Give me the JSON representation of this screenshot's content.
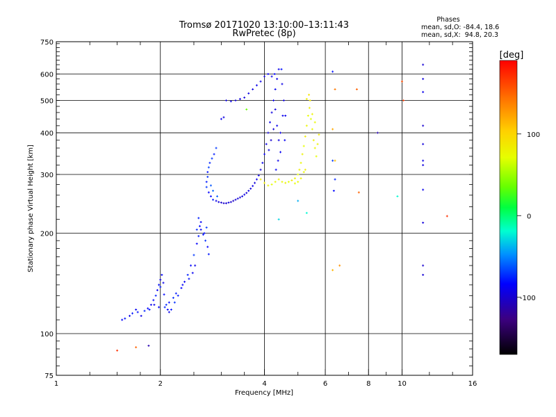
{
  "header": {
    "title": "Tromsø 20171020 13:10:00–13:11:43",
    "subtitle": "RwPretec (8p)"
  },
  "phases": {
    "label": "Phases",
    "line_o": "mean, sd,O: -84.4, 18.6",
    "line_x": "mean, sd,X:  94.8, 20.3"
  },
  "colorbar": {
    "unit": "[deg]",
    "ticks": [
      {
        "value": 100,
        "label": "100"
      },
      {
        "value": 0,
        "label": "0"
      },
      {
        "value": -100,
        "label": "-100"
      }
    ]
  },
  "chart_data": {
    "type": "scatter",
    "xlabel": "Frequency [MHz]",
    "ylabel": "Stationary phase Virtual Height [km]",
    "x_scale": "log2",
    "y_scale": "log",
    "xlim": [
      1,
      16
    ],
    "ylim": [
      75,
      750
    ],
    "grid": true,
    "x_ticks": [
      1,
      2,
      4,
      6,
      8,
      10,
      16
    ],
    "x_tick_labels": [
      "1",
      "2",
      "4",
      "6",
      "8",
      "10",
      "16"
    ],
    "y_ticks": [
      75,
      100,
      200,
      300,
      400,
      500,
      600,
      750
    ],
    "y_tick_labels": [
      "75",
      "100",
      "200",
      "300",
      "400",
      "500",
      "600",
      "750"
    ],
    "phase_range": [
      -170,
      190
    ],
    "series": [
      {
        "points": [
          [
            1.55,
            110,
            -85
          ],
          [
            1.58,
            111,
            -80
          ],
          [
            1.63,
            113,
            -90
          ],
          [
            1.66,
            115,
            -78
          ],
          [
            1.7,
            118,
            -88
          ],
          [
            1.72,
            116,
            -80
          ],
          [
            1.76,
            113,
            -92
          ],
          [
            1.8,
            117,
            -75
          ],
          [
            1.84,
            119,
            -83
          ],
          [
            1.88,
            122,
            -90
          ],
          [
            1.91,
            126,
            -82
          ],
          [
            1.94,
            130,
            -76
          ],
          [
            1.96,
            135,
            -88
          ],
          [
            1.98,
            140,
            -80
          ],
          [
            2.0,
            145,
            -92
          ],
          [
            2.0,
            138,
            -78
          ],
          [
            2.02,
            150,
            -85
          ],
          [
            2.04,
            142,
            -90
          ],
          [
            2.05,
            131,
            -82
          ],
          [
            2.08,
            122,
            -74
          ],
          [
            2.1,
            118,
            -86
          ],
          [
            2.12,
            116,
            -90
          ],
          [
            2.15,
            118,
            -80
          ],
          [
            2.2,
            124,
            -72
          ],
          [
            2.25,
            130,
            -78
          ],
          [
            2.3,
            137,
            -84
          ],
          [
            2.35,
            143,
            -88
          ],
          [
            2.4,
            150,
            -76
          ],
          [
            2.45,
            160,
            -82
          ],
          [
            2.5,
            172,
            -70
          ],
          [
            2.55,
            186,
            -85
          ],
          [
            2.58,
            196,
            -78
          ],
          [
            2.62,
            205,
            -88
          ],
          [
            2.66,
            198,
            -80
          ],
          [
            2.7,
            190,
            -72
          ],
          [
            2.74,
            182,
            -84
          ],
          [
            2.76,
            173,
            -78
          ],
          [
            2.6,
            210,
            -82
          ],
          [
            2.58,
            222,
            -76
          ],
          [
            2.62,
            216,
            -86
          ],
          [
            2.55,
            205,
            -74
          ],
          [
            2.68,
            200,
            -80
          ],
          [
            2.72,
            208,
            -70
          ],
          [
            2.52,
            160,
            -92
          ],
          [
            2.48,
            152,
            -88
          ],
          [
            2.42,
            146,
            -80
          ],
          [
            2.32,
            140,
            -86
          ],
          [
            2.22,
            132,
            -78
          ],
          [
            2.18,
            128,
            -74
          ],
          [
            2.12,
            124,
            -82
          ],
          [
            2.06,
            120,
            -76
          ],
          [
            1.98,
            120,
            -84
          ],
          [
            1.92,
            122,
            -90
          ],
          [
            1.86,
            118,
            -80
          ]
        ]
      },
      {
        "points": [
          [
            2.72,
            275,
            -70
          ],
          [
            2.72,
            285,
            -78
          ],
          [
            2.74,
            295,
            -72
          ],
          [
            2.74,
            305,
            -80
          ],
          [
            2.76,
            315,
            -68
          ],
          [
            2.78,
            325,
            -75
          ],
          [
            2.82,
            335,
            -72
          ],
          [
            2.86,
            345,
            -78
          ],
          [
            2.9,
            360,
            -70
          ],
          [
            2.76,
            265,
            -84
          ],
          [
            2.8,
            258,
            -82
          ],
          [
            2.84,
            252,
            -76
          ],
          [
            2.9,
            250,
            -92
          ],
          [
            2.95,
            248,
            -96
          ],
          [
            3.0,
            247,
            -100
          ],
          [
            3.05,
            246,
            -102
          ],
          [
            3.1,
            246,
            -98
          ],
          [
            3.15,
            247,
            -95
          ],
          [
            3.2,
            248,
            -100
          ],
          [
            3.25,
            250,
            -104
          ],
          [
            3.3,
            252,
            -98
          ],
          [
            3.35,
            254,
            -96
          ],
          [
            3.4,
            256,
            -100
          ],
          [
            3.45,
            258,
            -95
          ],
          [
            3.5,
            261,
            -92
          ],
          [
            3.55,
            264,
            -98
          ],
          [
            3.6,
            268,
            -94
          ],
          [
            3.65,
            272,
            -96
          ],
          [
            3.7,
            277,
            -92
          ],
          [
            3.75,
            283,
            -96
          ],
          [
            3.8,
            290,
            -90
          ],
          [
            3.85,
            298,
            -92
          ],
          [
            3.9,
            310,
            -94
          ],
          [
            3.95,
            325,
            -90
          ],
          [
            4.0,
            345,
            -88
          ],
          [
            4.05,
            370,
            -92
          ],
          [
            4.1,
            400,
            -96
          ],
          [
            4.15,
            430,
            -90
          ],
          [
            4.2,
            460,
            -94
          ],
          [
            4.25,
            500,
            -92
          ],
          [
            4.3,
            540,
            -88
          ],
          [
            4.35,
            580,
            -92
          ],
          [
            4.4,
            620,
            -90
          ],
          [
            4.3,
            470,
            -96
          ],
          [
            4.35,
            420,
            -90
          ],
          [
            4.4,
            380,
            -94
          ],
          [
            4.45,
            350,
            -88
          ],
          [
            4.38,
            330,
            -92
          ],
          [
            4.32,
            310,
            -86
          ],
          [
            4.28,
            600,
            -84
          ],
          [
            4.2,
            590,
            -90
          ],
          [
            4.1,
            600,
            -86
          ],
          [
            4.48,
            620,
            -80
          ],
          [
            4.5,
            560,
            -92
          ],
          [
            4.55,
            500,
            -94
          ],
          [
            4.52,
            450,
            -90
          ],
          [
            4.45,
            400,
            -92
          ],
          [
            4.58,
            380,
            -88
          ],
          [
            4.6,
            450,
            -90
          ],
          [
            4.25,
            410,
            -98
          ],
          [
            4.18,
            380,
            -100
          ],
          [
            4.12,
            355,
            -92
          ],
          [
            3.1,
            500,
            -96
          ],
          [
            3.2,
            497,
            -92
          ],
          [
            3.3,
            500,
            -98
          ],
          [
            3.4,
            505,
            -94
          ],
          [
            3.5,
            510,
            -96
          ],
          [
            3.6,
            525,
            -92
          ],
          [
            3.7,
            540,
            -94
          ],
          [
            3.8,
            555,
            -90
          ],
          [
            3.9,
            570,
            -92
          ],
          [
            4.0,
            590,
            -96
          ],
          [
            3.0,
            440,
            -90
          ],
          [
            3.05,
            445,
            -94
          ],
          [
            2.8,
            278,
            -62
          ],
          [
            2.84,
            268,
            -58
          ],
          [
            2.92,
            258,
            -60
          ]
        ]
      },
      {
        "points": [
          [
            4.5,
            285,
            75
          ],
          [
            4.6,
            283,
            80
          ],
          [
            4.7,
            285,
            70
          ],
          [
            4.8,
            288,
            85
          ],
          [
            4.9,
            292,
            78
          ],
          [
            5.0,
            300,
            74
          ],
          [
            5.05,
            310,
            82
          ],
          [
            5.1,
            325,
            76
          ],
          [
            5.15,
            345,
            80
          ],
          [
            5.2,
            365,
            72
          ],
          [
            5.25,
            390,
            85
          ],
          [
            5.3,
            420,
            78
          ],
          [
            5.35,
            450,
            74
          ],
          [
            5.4,
            475,
            82
          ],
          [
            5.42,
            500,
            88
          ],
          [
            5.38,
            520,
            90
          ],
          [
            5.3,
            505,
            84
          ],
          [
            5.45,
            440,
            70
          ],
          [
            5.5,
            410,
            76
          ],
          [
            5.55,
            380,
            82
          ],
          [
            5.6,
            360,
            78
          ],
          [
            5.65,
            340,
            72
          ],
          [
            5.7,
            370,
            80
          ],
          [
            5.75,
            395,
            86
          ],
          [
            5.6,
            430,
            74
          ],
          [
            5.5,
            455,
            78
          ],
          [
            4.4,
            290,
            82
          ],
          [
            4.3,
            285,
            76
          ],
          [
            4.2,
            280,
            70
          ],
          [
            4.1,
            278,
            78
          ],
          [
            4.0,
            283,
            84
          ],
          [
            3.9,
            290,
            88
          ],
          [
            5.0,
            285,
            74
          ],
          [
            5.1,
            292,
            80
          ],
          [
            5.2,
            305,
            76
          ],
          [
            5.25,
            310,
            84
          ],
          [
            4.9,
            282,
            72
          ]
        ]
      },
      {
        "points": [
          [
            6.3,
            610,
            -80
          ],
          [
            6.3,
            330,
            -70
          ],
          [
            6.4,
            290,
            -75
          ],
          [
            6.35,
            268,
            -82
          ],
          [
            8.5,
            400,
            -110
          ],
          [
            9.7,
            258,
            -20
          ],
          [
            5.3,
            230,
            -20
          ],
          [
            4.4,
            220,
            -30
          ],
          [
            5.0,
            250,
            -40
          ],
          [
            11.5,
            640,
            -98
          ],
          [
            11.5,
            580,
            -95
          ],
          [
            11.5,
            530,
            -90
          ],
          [
            11.5,
            420,
            -100
          ],
          [
            11.5,
            370,
            -96
          ],
          [
            11.5,
            330,
            -92
          ],
          [
            11.5,
            320,
            -95
          ],
          [
            11.5,
            270,
            -90
          ],
          [
            11.5,
            215,
            -96
          ],
          [
            11.5,
            160,
            -100
          ],
          [
            11.5,
            150,
            -98
          ],
          [
            3.55,
            470,
            35
          ],
          [
            6.4,
            540,
            140
          ],
          [
            7.4,
            540,
            150
          ],
          [
            6.3,
            410,
            120
          ],
          [
            6.4,
            330,
            110
          ],
          [
            6.3,
            155,
            115
          ],
          [
            6.6,
            160,
            130
          ],
          [
            7.5,
            265,
            150
          ],
          [
            10.0,
            570,
            160
          ],
          [
            10.1,
            500,
            165
          ],
          [
            13.5,
            225,
            170
          ],
          [
            1.5,
            89,
            170
          ],
          [
            1.7,
            91,
            150
          ],
          [
            1.85,
            92,
            -110
          ]
        ]
      }
    ]
  }
}
